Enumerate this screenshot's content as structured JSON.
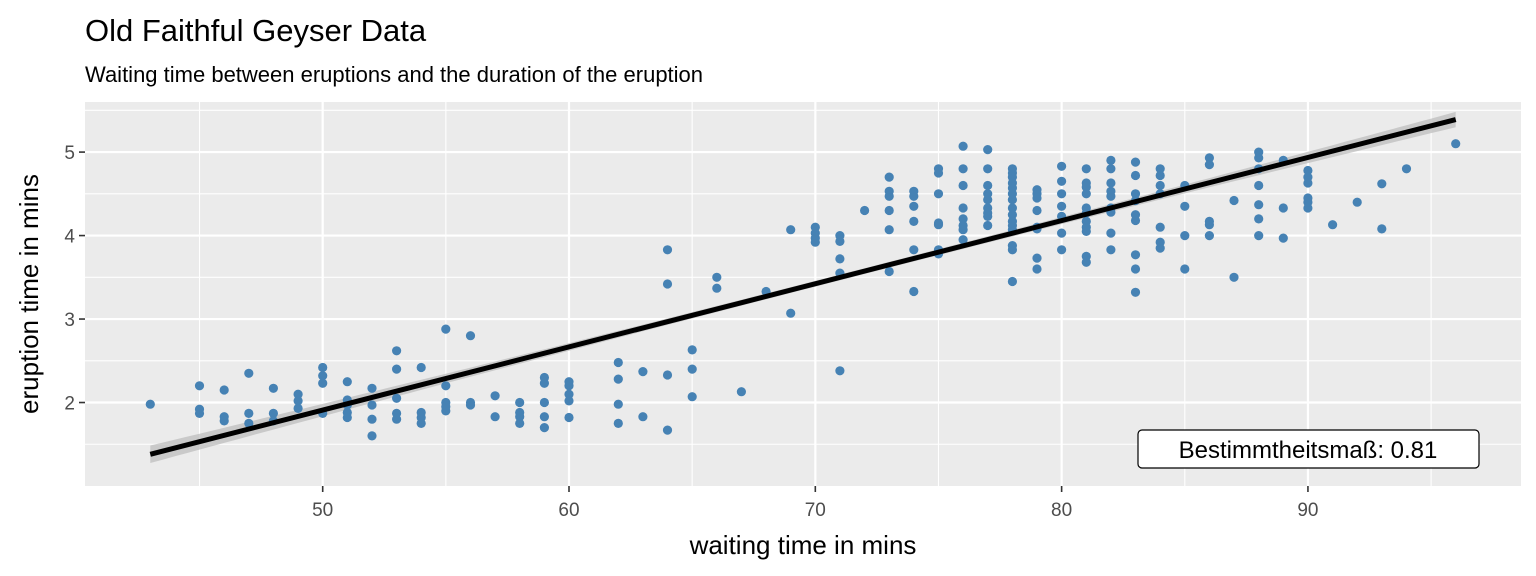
{
  "chart_data": {
    "type": "scatter",
    "title": "Old Faithful Geyser Data",
    "subtitle": "Waiting time between eruptions and the duration of the eruption",
    "xlabel": "waiting time in mins",
    "ylabel": "eruption time in mins",
    "xlim": [
      40.35,
      98.65
    ],
    "ylim": [
      1.0,
      5.6
    ],
    "x_ticks": [
      50,
      60,
      70,
      80,
      90
    ],
    "y_ticks": [
      2,
      3,
      4,
      5
    ],
    "grid": true,
    "legend": "none",
    "colors": {
      "points": "#4682b4",
      "line": "#000000",
      "band": "#bebebe",
      "panel": "#ebebeb",
      "grid": "#ffffff"
    },
    "regression": {
      "x": [
        43,
        96
      ],
      "y": [
        1.38,
        5.39
      ],
      "se_band": true
    },
    "annotation": {
      "label": "Bestimmtheitsmaß: 0.81",
      "position": "bottom-right"
    },
    "series": [
      {
        "values": [
          [
            43,
            1.98
          ],
          [
            45,
            2.2
          ],
          [
            45,
            1.92
          ],
          [
            45,
            1.87
          ],
          [
            46,
            2.15
          ],
          [
            46,
            1.83
          ],
          [
            46,
            1.78
          ],
          [
            47,
            2.35
          ],
          [
            47,
            1.87
          ],
          [
            47,
            1.75
          ],
          [
            48,
            2.17
          ],
          [
            48,
            1.87
          ],
          [
            48,
            1.78
          ],
          [
            49,
            2.1
          ],
          [
            49,
            2.02
          ],
          [
            49,
            1.93
          ],
          [
            50,
            2.42
          ],
          [
            50,
            2.32
          ],
          [
            50,
            2.23
          ],
          [
            50,
            1.87
          ],
          [
            51,
            2.25
          ],
          [
            51,
            2.03
          ],
          [
            51,
            1.97
          ],
          [
            51,
            1.88
          ],
          [
            51,
            1.82
          ],
          [
            52,
            2.17
          ],
          [
            52,
            1.97
          ],
          [
            52,
            1.8
          ],
          [
            52,
            1.6
          ],
          [
            53,
            2.62
          ],
          [
            53,
            2.4
          ],
          [
            53,
            2.05
          ],
          [
            53,
            1.87
          ],
          [
            53,
            1.8
          ],
          [
            54,
            2.42
          ],
          [
            54,
            1.88
          ],
          [
            54,
            1.82
          ],
          [
            54,
            1.75
          ],
          [
            55,
            2.88
          ],
          [
            55,
            2.2
          ],
          [
            55,
            2.0
          ],
          [
            55,
            1.95
          ],
          [
            55,
            1.9
          ],
          [
            56,
            2.8
          ],
          [
            56,
            2.0
          ],
          [
            56,
            1.97
          ],
          [
            57,
            2.08
          ],
          [
            57,
            1.83
          ],
          [
            58,
            2.0
          ],
          [
            58,
            1.88
          ],
          [
            58,
            1.83
          ],
          [
            58,
            1.75
          ],
          [
            59,
            2.3
          ],
          [
            59,
            2.23
          ],
          [
            59,
            2.0
          ],
          [
            59,
            1.83
          ],
          [
            59,
            1.7
          ],
          [
            60,
            2.25
          ],
          [
            60,
            2.2
          ],
          [
            60,
            2.1
          ],
          [
            60,
            2.02
          ],
          [
            60,
            1.82
          ],
          [
            62,
            2.48
          ],
          [
            62,
            2.28
          ],
          [
            62,
            1.98
          ],
          [
            62,
            1.75
          ],
          [
            63,
            2.37
          ],
          [
            63,
            1.83
          ],
          [
            64,
            3.83
          ],
          [
            64,
            3.42
          ],
          [
            64,
            2.33
          ],
          [
            64,
            1.67
          ],
          [
            65,
            2.63
          ],
          [
            65,
            2.4
          ],
          [
            65,
            2.07
          ],
          [
            66,
            3.5
          ],
          [
            66,
            3.37
          ],
          [
            67,
            2.13
          ],
          [
            68,
            3.33
          ],
          [
            69,
            4.07
          ],
          [
            69,
            3.07
          ],
          [
            70,
            4.1
          ],
          [
            70,
            4.03
          ],
          [
            70,
            3.97
          ],
          [
            70,
            3.92
          ],
          [
            71,
            4.0
          ],
          [
            71,
            3.93
          ],
          [
            71,
            3.72
          ],
          [
            71,
            3.55
          ],
          [
            71,
            2.38
          ],
          [
            72,
            4.3
          ],
          [
            73,
            4.7
          ],
          [
            73,
            4.53
          ],
          [
            73,
            4.47
          ],
          [
            73,
            4.3
          ],
          [
            73,
            4.07
          ],
          [
            73,
            3.57
          ],
          [
            74,
            4.53
          ],
          [
            74,
            4.47
          ],
          [
            74,
            4.35
          ],
          [
            74,
            4.17
          ],
          [
            74,
            3.83
          ],
          [
            74,
            3.33
          ],
          [
            75,
            4.8
          ],
          [
            75,
            4.75
          ],
          [
            75,
            4.5
          ],
          [
            75,
            4.15
          ],
          [
            75,
            4.13
          ],
          [
            75,
            3.83
          ],
          [
            75,
            3.78
          ],
          [
            76,
            5.07
          ],
          [
            76,
            4.8
          ],
          [
            76,
            4.6
          ],
          [
            76,
            4.33
          ],
          [
            76,
            4.2
          ],
          [
            76,
            4.12
          ],
          [
            76,
            4.07
          ],
          [
            76,
            3.95
          ],
          [
            77,
            5.03
          ],
          [
            77,
            4.8
          ],
          [
            77,
            4.6
          ],
          [
            77,
            4.5
          ],
          [
            77,
            4.43
          ],
          [
            77,
            4.33
          ],
          [
            77,
            4.27
          ],
          [
            77,
            4.23
          ],
          [
            77,
            4.12
          ],
          [
            78,
            4.8
          ],
          [
            78,
            4.75
          ],
          [
            78,
            4.7
          ],
          [
            78,
            4.63
          ],
          [
            78,
            4.57
          ],
          [
            78,
            4.5
          ],
          [
            78,
            4.43
          ],
          [
            78,
            4.33
          ],
          [
            78,
            4.25
          ],
          [
            78,
            4.17
          ],
          [
            78,
            4.12
          ],
          [
            78,
            4.07
          ],
          [
            78,
            3.88
          ],
          [
            78,
            3.83
          ],
          [
            78,
            3.45
          ],
          [
            79,
            4.55
          ],
          [
            79,
            4.5
          ],
          [
            79,
            4.45
          ],
          [
            79,
            4.3
          ],
          [
            79,
            4.1
          ],
          [
            79,
            4.08
          ],
          [
            79,
            3.73
          ],
          [
            79,
            3.6
          ],
          [
            80,
            4.83
          ],
          [
            80,
            4.65
          ],
          [
            80,
            4.5
          ],
          [
            80,
            4.35
          ],
          [
            80,
            4.23
          ],
          [
            80,
            4.03
          ],
          [
            80,
            3.83
          ],
          [
            81,
            4.8
          ],
          [
            81,
            4.63
          ],
          [
            81,
            4.58
          ],
          [
            81,
            4.5
          ],
          [
            81,
            4.33
          ],
          [
            81,
            4.27
          ],
          [
            81,
            4.17
          ],
          [
            81,
            4.1
          ],
          [
            81,
            4.05
          ],
          [
            81,
            3.75
          ],
          [
            81,
            3.68
          ],
          [
            82,
            4.9
          ],
          [
            82,
            4.8
          ],
          [
            82,
            4.63
          ],
          [
            82,
            4.53
          ],
          [
            82,
            4.47
          ],
          [
            82,
            4.33
          ],
          [
            82,
            4.28
          ],
          [
            82,
            4.03
          ],
          [
            82,
            3.83
          ],
          [
            83,
            4.88
          ],
          [
            83,
            4.72
          ],
          [
            83,
            4.5
          ],
          [
            83,
            4.42
          ],
          [
            83,
            4.25
          ],
          [
            83,
            4.18
          ],
          [
            83,
            3.77
          ],
          [
            83,
            3.6
          ],
          [
            83,
            3.32
          ],
          [
            84,
            4.8
          ],
          [
            84,
            4.72
          ],
          [
            84,
            4.6
          ],
          [
            84,
            4.5
          ],
          [
            84,
            4.1
          ],
          [
            84,
            3.92
          ],
          [
            84,
            3.85
          ],
          [
            85,
            4.6
          ],
          [
            85,
            4.35
          ],
          [
            85,
            4.0
          ],
          [
            85,
            3.6
          ],
          [
            86,
            4.93
          ],
          [
            86,
            4.85
          ],
          [
            86,
            4.17
          ],
          [
            86,
            4.13
          ],
          [
            86,
            4.0
          ],
          [
            87,
            4.42
          ],
          [
            87,
            3.5
          ],
          [
            88,
            5.0
          ],
          [
            88,
            4.93
          ],
          [
            88,
            4.8
          ],
          [
            88,
            4.6
          ],
          [
            88,
            4.37
          ],
          [
            88,
            4.2
          ],
          [
            88,
            4.0
          ],
          [
            89,
            4.9
          ],
          [
            89,
            4.33
          ],
          [
            89,
            3.97
          ],
          [
            90,
            4.78
          ],
          [
            90,
            4.7
          ],
          [
            90,
            4.63
          ],
          [
            90,
            4.45
          ],
          [
            90,
            4.4
          ],
          [
            90,
            4.33
          ],
          [
            91,
            4.13
          ],
          [
            92,
            4.4
          ],
          [
            93,
            4.62
          ],
          [
            93,
            4.08
          ],
          [
            94,
            4.8
          ],
          [
            96,
            5.1
          ]
        ]
      }
    ]
  }
}
